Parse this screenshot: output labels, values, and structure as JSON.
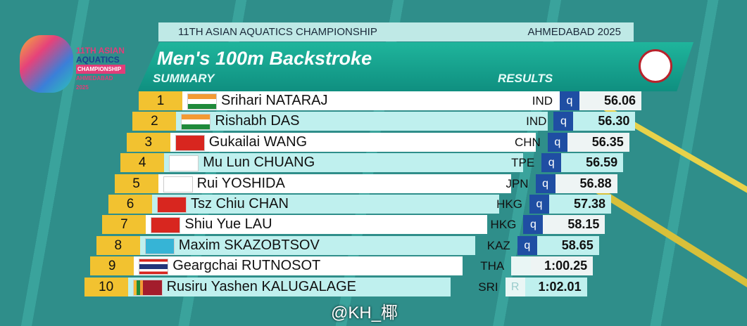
{
  "logo": {
    "line1": "11TH ASIAN",
    "line2": "AQUATICS",
    "line3": "CHAMPIONSHIP",
    "line4": "AHMEDABAD 2025"
  },
  "header": {
    "event": "11TH ASIAN AQUATICS CHAMPIONSHIP",
    "venue": "AHMEDABAD 2025",
    "title": "Men's 100m Backstroke",
    "left_label": "SUMMARY",
    "right_label": "RESULTS"
  },
  "table": {
    "rows": [
      {
        "rank": 1,
        "name": "Srihari NATARAJ",
        "country": "IND",
        "qualifier": "q",
        "time": "56.06"
      },
      {
        "rank": 2,
        "name": "Rishabh DAS",
        "country": "IND",
        "qualifier": "q",
        "time": "56.30"
      },
      {
        "rank": 3,
        "name": "Gukailai WANG",
        "country": "CHN",
        "qualifier": "q",
        "time": "56.35"
      },
      {
        "rank": 4,
        "name": "Mu Lun CHUANG",
        "country": "TPE",
        "qualifier": "q",
        "time": "56.59"
      },
      {
        "rank": 5,
        "name": "Rui YOSHIDA",
        "country": "JPN",
        "qualifier": "q",
        "time": "56.88"
      },
      {
        "rank": 6,
        "name": "Tsz Chiu CHAN",
        "country": "HKG",
        "qualifier": "q",
        "time": "57.38"
      },
      {
        "rank": 7,
        "name": "Shiu Yue LAU",
        "country": "HKG",
        "qualifier": "q",
        "time": "58.15"
      },
      {
        "rank": 8,
        "name": "Maxim SKAZOBTSOV",
        "country": "KAZ",
        "qualifier": "q",
        "time": "58.65"
      },
      {
        "rank": 9,
        "name": "Geargchai RUTNOSOT",
        "country": "THA",
        "time": "1:00.25"
      },
      {
        "rank": 10,
        "name": "Rusiru Yashen KALUGALAGE",
        "country": "SRI",
        "qualifier": "R",
        "time": "1:02.01"
      }
    ]
  },
  "watermark": "@KH_椰"
}
